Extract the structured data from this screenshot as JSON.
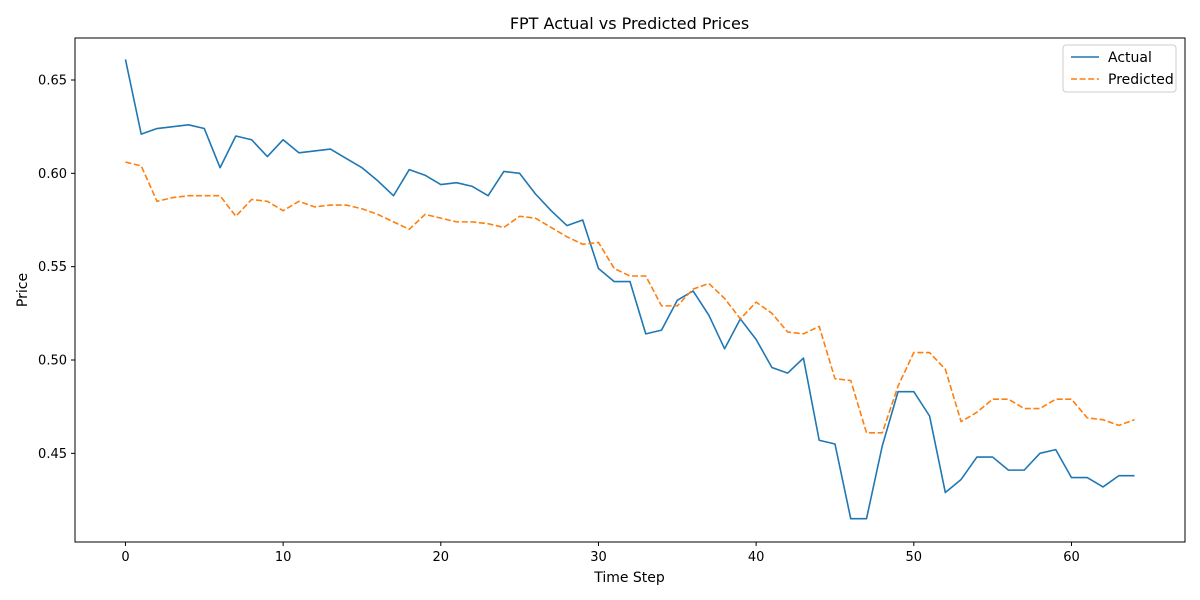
{
  "chart_data": {
    "type": "line",
    "title": "FPT Actual vs Predicted Prices",
    "xlabel": "Time Step",
    "ylabel": "Price",
    "xlim": [
      -3.2,
      67.2
    ],
    "ylim": [
      0.4025,
      0.6725
    ],
    "xticks": [
      0,
      10,
      20,
      30,
      40,
      50,
      60
    ],
    "yticks": [
      0.45,
      0.5,
      0.55,
      0.6,
      0.65
    ],
    "ytick_labels": [
      "0.45",
      "0.50",
      "0.55",
      "0.60",
      "0.65"
    ],
    "grid": false,
    "legend_position": "top-right",
    "x": [
      0,
      1,
      2,
      3,
      4,
      5,
      6,
      7,
      8,
      9,
      10,
      11,
      12,
      13,
      14,
      15,
      16,
      17,
      18,
      19,
      20,
      21,
      22,
      23,
      24,
      25,
      26,
      27,
      28,
      29,
      30,
      31,
      32,
      33,
      34,
      35,
      36,
      37,
      38,
      39,
      40,
      41,
      42,
      43,
      44,
      45,
      46,
      47,
      48,
      49,
      50,
      51,
      52,
      53,
      54,
      55,
      56,
      57,
      58,
      59,
      60,
      61,
      62,
      63,
      64
    ],
    "series": [
      {
        "name": "Actual",
        "color": "#1f77b4",
        "style": "solid",
        "values": [
          0.661,
          0.621,
          0.624,
          0.625,
          0.626,
          0.624,
          0.603,
          0.62,
          0.618,
          0.609,
          0.618,
          0.611,
          0.612,
          0.613,
          0.608,
          0.603,
          0.596,
          0.588,
          0.602,
          0.599,
          0.594,
          0.595,
          0.593,
          0.588,
          0.601,
          0.6,
          0.589,
          0.58,
          0.572,
          0.575,
          0.549,
          0.542,
          0.542,
          0.514,
          0.516,
          0.532,
          0.537,
          0.524,
          0.506,
          0.522,
          0.511,
          0.496,
          0.493,
          0.501,
          0.457,
          0.455,
          0.415,
          0.415,
          0.454,
          0.483,
          0.483,
          0.47,
          0.429,
          0.436,
          0.448,
          0.448,
          0.441,
          0.441,
          0.45,
          0.452,
          0.437,
          0.437,
          0.432,
          0.438,
          0.438
        ]
      },
      {
        "name": "Predicted",
        "color": "#ff7f0e",
        "style": "dashed",
        "values": [
          0.606,
          0.604,
          0.585,
          0.587,
          0.588,
          0.588,
          0.588,
          0.577,
          0.586,
          0.585,
          0.58,
          0.585,
          0.582,
          0.583,
          0.583,
          0.581,
          0.578,
          0.574,
          0.57,
          0.578,
          0.576,
          0.574,
          0.574,
          0.573,
          0.571,
          0.577,
          0.576,
          0.571,
          0.566,
          0.562,
          0.563,
          0.549,
          0.545,
          0.545,
          0.529,
          0.529,
          0.538,
          0.541,
          0.533,
          0.522,
          0.531,
          0.525,
          0.515,
          0.514,
          0.518,
          0.49,
          0.489,
          0.461,
          0.461,
          0.486,
          0.504,
          0.504,
          0.495,
          0.467,
          0.472,
          0.479,
          0.479,
          0.474,
          0.474,
          0.479,
          0.479,
          0.469,
          0.468,
          0.465,
          0.468
        ]
      }
    ]
  }
}
